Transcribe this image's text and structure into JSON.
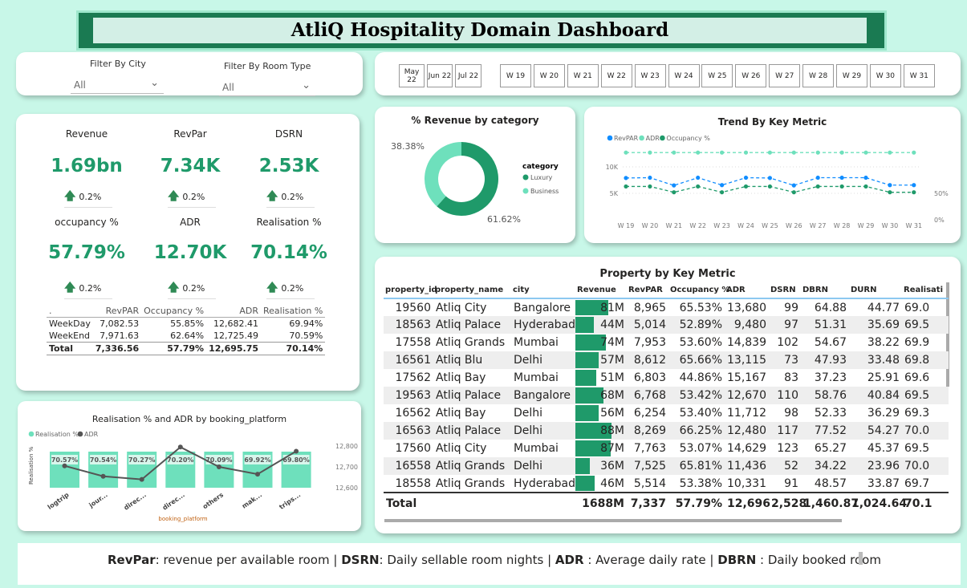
{
  "title": "AtliQ Hospitality Domain Dashboard",
  "filters": {
    "city_label": "Filter By City",
    "city_value": "All",
    "room_label": "Filter By Room Type",
    "room_value": "All"
  },
  "months": [
    "May 22",
    "Jun 22",
    "Jul 22"
  ],
  "weeks": [
    "W 19",
    "W 20",
    "W 21",
    "W 22",
    "W 23",
    "W 24",
    "W 25",
    "W 26",
    "W 27",
    "W 28",
    "W 29",
    "W 30",
    "W 31"
  ],
  "kpis": [
    {
      "label": "Revenue",
      "value": "1.69bn",
      "delta": "0.2%"
    },
    {
      "label": "RevPar",
      "value": "7.34K",
      "delta": "0.2%"
    },
    {
      "label": "DSRN",
      "value": "2.53K",
      "delta": "0.2%"
    },
    {
      "label": "occupancy %",
      "value": "57.79%",
      "delta": "0.2%"
    },
    {
      "label": "ADR",
      "value": "12.70K",
      "delta": "0.2%"
    },
    {
      "label": "Realisation %",
      "value": "70.14%",
      "delta": "0.2%"
    }
  ],
  "daytype_table": {
    "headers": [
      ".",
      "RevPAR",
      "Occupancy %",
      "ADR",
      "Realisation %"
    ],
    "rows": [
      [
        "WeekDay",
        "7,082.53",
        "55.85%",
        "12,682.41",
        "69.94%"
      ],
      [
        "WeekEnd",
        "7,971.63",
        "62.64%",
        "12,725.49",
        "70.59%"
      ]
    ],
    "total": [
      "Total",
      "7,336.56",
      "57.79%",
      "12,695.75",
      "70.14%"
    ]
  },
  "chart_data": [
    {
      "type": "pie",
      "title": "% Revenue by category",
      "legend_title": "category",
      "legend_position": "right",
      "categories": [
        "Luxury",
        "Business"
      ],
      "values": [
        61.62,
        38.38
      ],
      "labels": [
        "61.62%",
        "38.38%"
      ],
      "colors": [
        "#1f9a6a",
        "#6ee0bc"
      ]
    },
    {
      "type": "line",
      "title": "Trend By Key Metric",
      "legend_position": "top-left",
      "x": [
        "W 19",
        "W 20",
        "W 21",
        "W 22",
        "W 23",
        "W 24",
        "W 25",
        "W 26",
        "W 27",
        "W 28",
        "W 29",
        "W 30",
        "W 31"
      ],
      "y_ticks": [
        "5K",
        "10K"
      ],
      "y2_ticks": [
        "0%",
        "50%"
      ],
      "ylim": [
        0,
        15000
      ],
      "y2lim": [
        0,
        115
      ],
      "series": [
        {
          "name": "RevPAR",
          "axis": "left",
          "color": "#118dff",
          "values": [
            7900,
            7950,
            6500,
            7950,
            6550,
            7950,
            7900,
            6500,
            7950,
            7950,
            7950,
            6550,
            6550
          ]
        },
        {
          "name": "ADR",
          "axis": "left",
          "color": "#6ee0bc",
          "values": [
            12700,
            12700,
            12700,
            12700,
            12700,
            12700,
            12700,
            12700,
            12700,
            12700,
            12700,
            12700,
            12700
          ]
        },
        {
          "name": "Occupancy %",
          "axis": "right",
          "color": "#1f9a6a",
          "values": [
            63,
            63,
            52,
            63,
            52,
            63,
            63,
            52,
            63,
            63,
            63,
            52,
            52
          ]
        }
      ]
    },
    {
      "type": "bar",
      "title": "Realisation and ADR by booking_platform",
      "title_text": "Realisation % and ADR by booking_platform",
      "xlabel": "booking_platform",
      "ylabel": "Realisation %",
      "categories": [
        "logtrip",
        "jour...",
        "direc...",
        "direc...",
        "others",
        "mak...",
        "trips..."
      ],
      "y2_ticks": [
        "12,600",
        "12,700",
        "12,800"
      ],
      "y2lim": [
        12580,
        12820
      ],
      "series": [
        {
          "name": "Realisation %",
          "type": "bar",
          "color": "#6ee0bc",
          "values": [
            70.57,
            70.54,
            70.27,
            70.2,
            70.09,
            69.92,
            69.8
          ],
          "labels": [
            "70.57%",
            "70.54%",
            "70.27%",
            "70.20%",
            "70.09%",
            "69.92%",
            "69.80%"
          ]
        },
        {
          "name": "ADR",
          "type": "line",
          "color": "#555555",
          "values": [
            12705,
            12655,
            12640,
            12795,
            12700,
            12665,
            12775
          ]
        }
      ]
    }
  ],
  "property_table": {
    "title": "Property by Key Metric",
    "headers": [
      "property_id",
      "property_name",
      "city",
      "Revenue",
      "RevPAR",
      "Occupancy %",
      "ADR",
      "DSRN",
      "DBRN",
      "DURN",
      "Realisati"
    ],
    "rows": [
      [
        "19560",
        "Atliq City",
        "Bangalore",
        "81M",
        "8,965",
        "65.53%",
        "13,680",
        "99",
        "64.88",
        "44.77",
        "69.0"
      ],
      [
        "18563",
        "Atliq Palace",
        "Hyderabad",
        "44M",
        "5,014",
        "52.89%",
        "9,480",
        "97",
        "51.31",
        "35.69",
        "69.5"
      ],
      [
        "17558",
        "Atliq Grands",
        "Mumbai",
        "74M",
        "7,953",
        "53.60%",
        "14,839",
        "102",
        "54.67",
        "38.22",
        "69.9"
      ],
      [
        "16561",
        "Atliq Blu",
        "Delhi",
        "57M",
        "8,612",
        "65.66%",
        "13,115",
        "73",
        "47.93",
        "33.48",
        "69.8"
      ],
      [
        "17562",
        "Atliq Bay",
        "Mumbai",
        "51M",
        "6,803",
        "44.86%",
        "15,167",
        "83",
        "37.23",
        "25.91",
        "69.6"
      ],
      [
        "19563",
        "Atliq Palace",
        "Bangalore",
        "68M",
        "6,768",
        "53.42%",
        "12,670",
        "110",
        "58.76",
        "40.84",
        "69.5"
      ],
      [
        "16562",
        "Atliq Bay",
        "Delhi",
        "56M",
        "6,254",
        "53.40%",
        "11,712",
        "98",
        "52.33",
        "36.29",
        "69.3"
      ],
      [
        "16563",
        "Atliq Palace",
        "Delhi",
        "88M",
        "8,269",
        "66.25%",
        "12,480",
        "117",
        "77.52",
        "54.27",
        "70.0"
      ],
      [
        "17560",
        "Atliq City",
        "Mumbai",
        "87M",
        "7,763",
        "53.07%",
        "14,629",
        "123",
        "65.27",
        "45.37",
        "69.5"
      ],
      [
        "16558",
        "Atliq Grands",
        "Delhi",
        "36M",
        "7,525",
        "65.81%",
        "11,436",
        "52",
        "34.22",
        "23.96",
        "70.0"
      ],
      [
        "18558",
        "Atliq Grands",
        "Hyderabad",
        "46M",
        "5,514",
        "53.38%",
        "10,331",
        "91",
        "48.57",
        "33.87",
        "69.7"
      ]
    ],
    "revenue_values": [
      81,
      44,
      74,
      57,
      51,
      68,
      56,
      88,
      87,
      36,
      46
    ],
    "total": [
      "Total",
      "",
      "",
      "1688M",
      "7,337",
      "57.79%",
      "12,696",
      "2,528",
      "1,460.87",
      "1,024.64",
      "70.1"
    ]
  },
  "footer": [
    [
      "RevPar",
      ": revenue per available room  | "
    ],
    [
      "DSRN",
      ": Daily sellable room nights  | "
    ],
    [
      "ADR",
      " : Average daily rate | "
    ],
    [
      "DBRN",
      " : Daily booked room"
    ]
  ]
}
